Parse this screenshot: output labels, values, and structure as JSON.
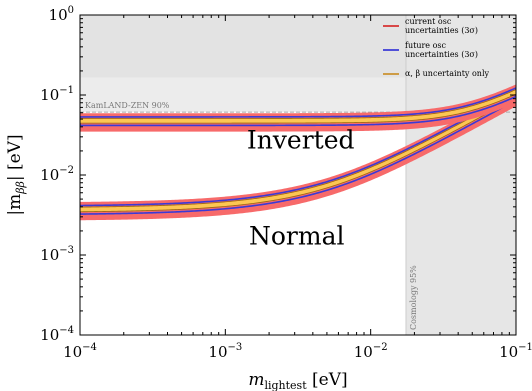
{
  "chart_data": {
    "type": "area",
    "xscale": "log",
    "yscale": "log",
    "xlim": [
      0.0001,
      0.1
    ],
    "ylim": [
      0.0001,
      1
    ],
    "xlabel_main": "m",
    "xlabel_sub": "lightest",
    "xlabel_unit": " [eV]",
    "ylabel_main": "|m",
    "ylabel_sub": "ββ",
    "ylabel_unit": "| [eV]",
    "x_ticks": [
      {
        "value": 0.0001,
        "base": "10",
        "exp": "−4"
      },
      {
        "value": 0.001,
        "base": "10",
        "exp": "−3"
      },
      {
        "value": 0.01,
        "base": "10",
        "exp": "−2"
      },
      {
        "value": 0.1,
        "base": "10",
        "exp": "−1"
      }
    ],
    "y_ticks": [
      {
        "value": 0.0001,
        "base": "10",
        "exp": "−4"
      },
      {
        "value": 0.001,
        "base": "10",
        "exp": "−3"
      },
      {
        "value": 0.01,
        "base": "10",
        "exp": "−2"
      },
      {
        "value": 0.1,
        "base": "10",
        "exp": "−1"
      },
      {
        "value": 1,
        "base": "10",
        "exp": "0"
      }
    ],
    "region_labels": {
      "inverted": {
        "text": "Inverted",
        "x": 0.0033,
        "y": 0.027
      },
      "normal": {
        "text": "Normal",
        "x": 0.0031,
        "y": 0.0017
      }
    },
    "exclusions": {
      "kamland": {
        "label": "KamLAND-ZEN 90%",
        "y_min": 0.061,
        "y_mid": 0.165,
        "color": "#ececec"
      },
      "cosmology": {
        "label": "Cosmology 95%",
        "x_min": 0.0175,
        "color": "#e6e6e6"
      }
    },
    "legend": [
      {
        "label_line1": "current osc",
        "label_line2": "uncertainties (3σ)",
        "color": "#d62020"
      },
      {
        "label_line1": "future osc",
        "label_line2": "uncertainties (3σ)",
        "color": "#2b2bd6"
      },
      {
        "label_line1": "α, β uncertainty only",
        "label_line2": "",
        "color": "#c98a1e"
      }
    ],
    "colors": {
      "band_fill": "#fdc653",
      "band_current": "#f76a6a",
      "band_future_edge": "#3a3ad6",
      "band_edge": "#9a6a10"
    }
  }
}
